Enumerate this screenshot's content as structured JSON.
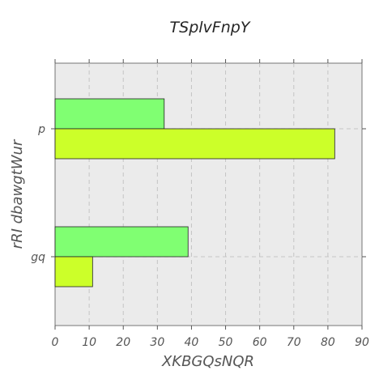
{
  "chart_data": {
    "type": "bar",
    "orientation": "horizontal",
    "title": "TSplvFnpY",
    "xlabel": "XKBGQsNQR",
    "ylabel": "rRI dbawgtWur",
    "categories": [
      "p",
      "gq"
    ],
    "series": [
      {
        "values": [
          32,
          39
        ],
        "color": "#80ff72"
      },
      {
        "values": [
          82,
          11
        ],
        "color": "#ccff29"
      }
    ],
    "xlim": [
      0,
      90
    ],
    "xticks": [
      0,
      10,
      20,
      30,
      40,
      50,
      60,
      70,
      80,
      90
    ],
    "grid": true,
    "background": "#ebebeb"
  }
}
